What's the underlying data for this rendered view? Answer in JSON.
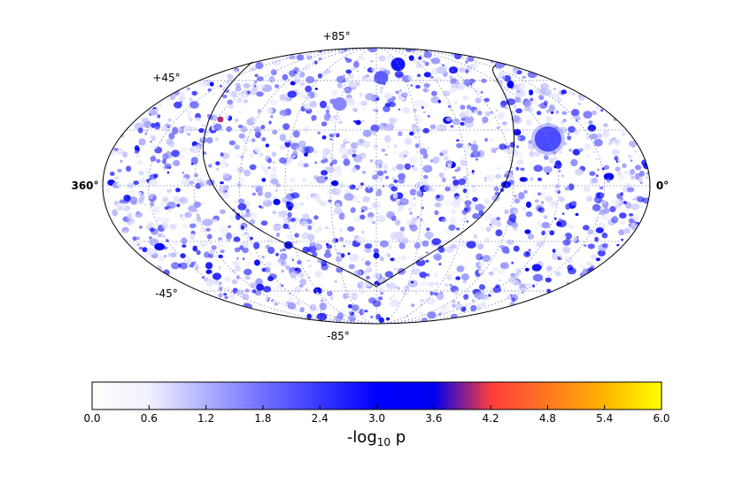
{
  "chart_data": {
    "type": "heatmap",
    "projection": "mollweide",
    "title": "",
    "grid": true,
    "grid_style": "dotted",
    "lat_labels": {
      "top": "+85°",
      "upper_left": "+45°",
      "lower_left": "-45°",
      "bottom": "-85°"
    },
    "lon_labels": {
      "left": "360",
      "right": "0"
    },
    "degree_symbol": "°",
    "colorbar": {
      "orientation": "horizontal",
      "placement": "bottom",
      "min": 0.0,
      "max": 6.0,
      "ticks": [
        "0.0",
        "0.6",
        "1.2",
        "1.8",
        "2.4",
        "3.0",
        "3.6",
        "4.2",
        "4.8",
        "5.4",
        "6.0"
      ],
      "label_main": "-log",
      "label_sub": "10",
      "label_tail": " p",
      "colormap_stops": [
        {
          "value": 0.0,
          "color": "#ffffff"
        },
        {
          "value": 0.6,
          "color": "#f0f0ff"
        },
        {
          "value": 1.8,
          "color": "#7070ff"
        },
        {
          "value": 3.0,
          "color": "#0000ff"
        },
        {
          "value": 3.6,
          "color": "#0000f0"
        },
        {
          "value": 4.2,
          "color": "#ff3c3c"
        },
        {
          "value": 4.8,
          "color": "#ff7820"
        },
        {
          "value": 5.4,
          "color": "#ffb400"
        },
        {
          "value": 6.0,
          "color": "#ffff00"
        }
      ]
    },
    "notable_features": [
      {
        "lon": 60,
        "lat": 25,
        "value": 2.2,
        "kind": "large-disk"
      },
      {
        "lon": 210,
        "lat": 45,
        "value": 1.6,
        "kind": "blob"
      },
      {
        "lon": 175,
        "lat": 62,
        "value": 2.0,
        "kind": "blob"
      },
      {
        "lon": 150,
        "lat": 72,
        "value": 2.8,
        "kind": "blob"
      },
      {
        "lon": 297,
        "lat": 36,
        "value": 4.0,
        "kind": "spot"
      },
      {
        "lon": 180,
        "lat": -38,
        "value": 3.2,
        "kind": "spot"
      }
    ],
    "boundary_curve": "great-circle band outline"
  }
}
